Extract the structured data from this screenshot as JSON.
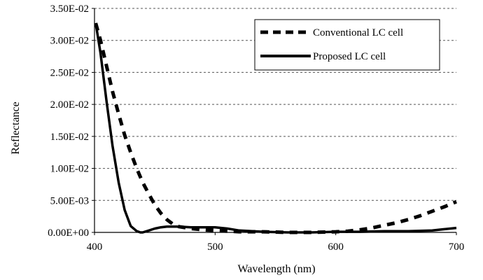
{
  "chart_data": {
    "type": "line",
    "title": "",
    "xlabel": "Wavelength (nm)",
    "ylabel": "Reflectance",
    "xlim": [
      400,
      700
    ],
    "ylim": [
      0,
      0.035
    ],
    "x_ticks": [
      400,
      500,
      600,
      700
    ],
    "x_tick_labels": [
      "400",
      "500",
      "600",
      "700"
    ],
    "y_ticks": [
      0,
      0.005,
      0.01,
      0.015,
      0.02,
      0.025,
      0.03,
      0.035
    ],
    "y_tick_labels": [
      "0.00E+00",
      "5.00E-03",
      "1.00E-02",
      "1.50E-02",
      "2.00E-02",
      "2.50E-02",
      "3.00E-02",
      "3.50E-02"
    ],
    "grid": "horizontal dashed",
    "legend_position": "top-right",
    "series": [
      {
        "name": "Conventional LC cell",
        "style": "dashed",
        "color": "#000000",
        "x": [
          401,
          405,
          410,
          415,
          420,
          425,
          430,
          435,
          440,
          445,
          450,
          455,
          460,
          465,
          470,
          480,
          490,
          500,
          510,
          520,
          540,
          560,
          580,
          600,
          610,
          620,
          630,
          640,
          650,
          660,
          670,
          680,
          690,
          700
        ],
        "y": [
          0.0327,
          0.03,
          0.026,
          0.022,
          0.0185,
          0.0152,
          0.0125,
          0.01,
          0.0078,
          0.006,
          0.0043,
          0.003,
          0.002,
          0.0013,
          0.0009,
          0.0006,
          0.0004,
          0.0003,
          0.0002,
          0.0001,
          0.0001,
          0.0,
          0.0,
          0.0001,
          0.0002,
          0.0004,
          0.0007,
          0.0011,
          0.0015,
          0.002,
          0.0026,
          0.0033,
          0.004,
          0.0048
        ]
      },
      {
        "name": "Proposed LC cell",
        "style": "solid",
        "color": "#000000",
        "x": [
          401,
          405,
          410,
          415,
          420,
          425,
          430,
          435,
          438,
          440,
          445,
          450,
          455,
          460,
          465,
          470,
          480,
          490,
          500,
          510,
          520,
          540,
          560,
          580,
          600,
          620,
          640,
          660,
          680,
          690,
          700
        ],
        "y": [
          0.0327,
          0.028,
          0.0205,
          0.0135,
          0.0078,
          0.0035,
          0.001,
          0.0002,
          0.0,
          0.0,
          0.0003,
          0.0006,
          0.0008,
          0.0009,
          0.0009,
          0.0009,
          0.0008,
          0.0008,
          0.0008,
          0.0006,
          0.0003,
          0.0001,
          0.0,
          0.0,
          0.0001,
          0.0001,
          0.0002,
          0.0002,
          0.0003,
          0.0005,
          0.0007
        ]
      }
    ]
  }
}
